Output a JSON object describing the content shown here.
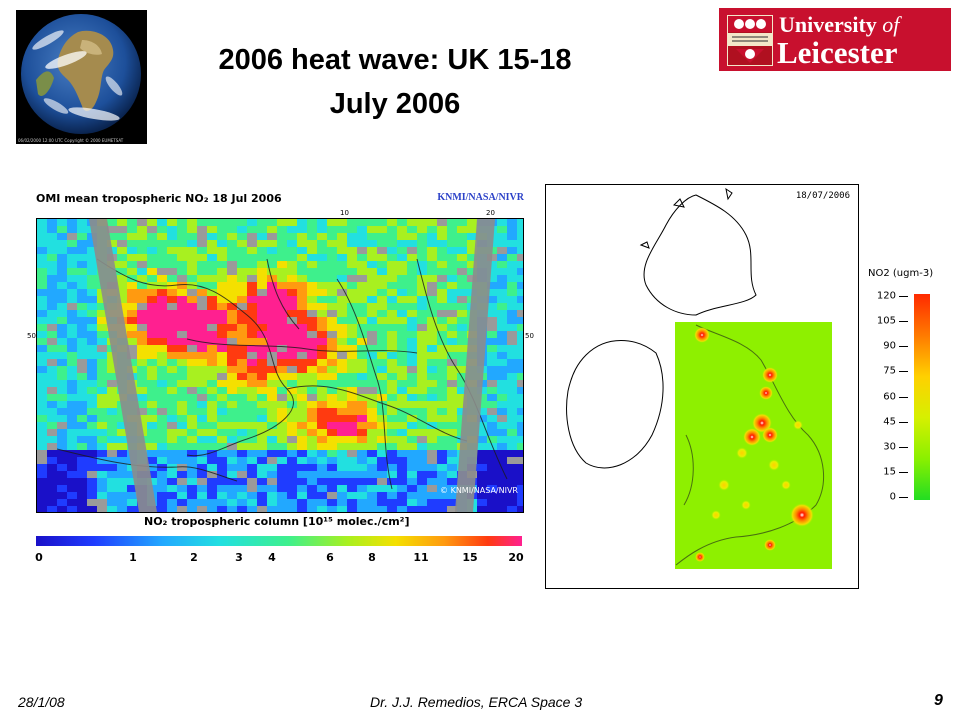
{
  "slide": {
    "title_line1": "2006 heat wave: UK 15-18",
    "title_line2": "July 2006",
    "page_number": "9"
  },
  "earth_image": {
    "caption": "06/02/2000 12:00 UTC Copyright © 2000 EUMETSAT"
  },
  "logo": {
    "line1_a": "University",
    "line1_b": "of",
    "line2": "Leicester"
  },
  "left_map": {
    "header": "OMI mean tropospheric NO₂   18 Jul 2006",
    "credit": "KNMI/NASA/NIVR",
    "watermark": "© KNMI/NASA/NIVR",
    "top_axis_ticks": [
      "10",
      "20"
    ],
    "side_axis_tick": "50",
    "colorbar_title": "NO₂ tropospheric column [10¹⁵ molec./cm²]",
    "colorbar_labels": [
      "0",
      "1",
      "2",
      "3",
      "4",
      "6",
      "8",
      "11",
      "15",
      "20"
    ]
  },
  "right_map": {
    "date": "18/07/2006",
    "legend_title": "NO2 (ugm-3)",
    "legend_values": [
      "120",
      "105",
      "90",
      "75",
      "60",
      "45",
      "30",
      "15",
      "0"
    ]
  },
  "footer": {
    "date": "28/1/08",
    "author": "Dr. J.J. Remedios, ERCA Space 3"
  }
}
